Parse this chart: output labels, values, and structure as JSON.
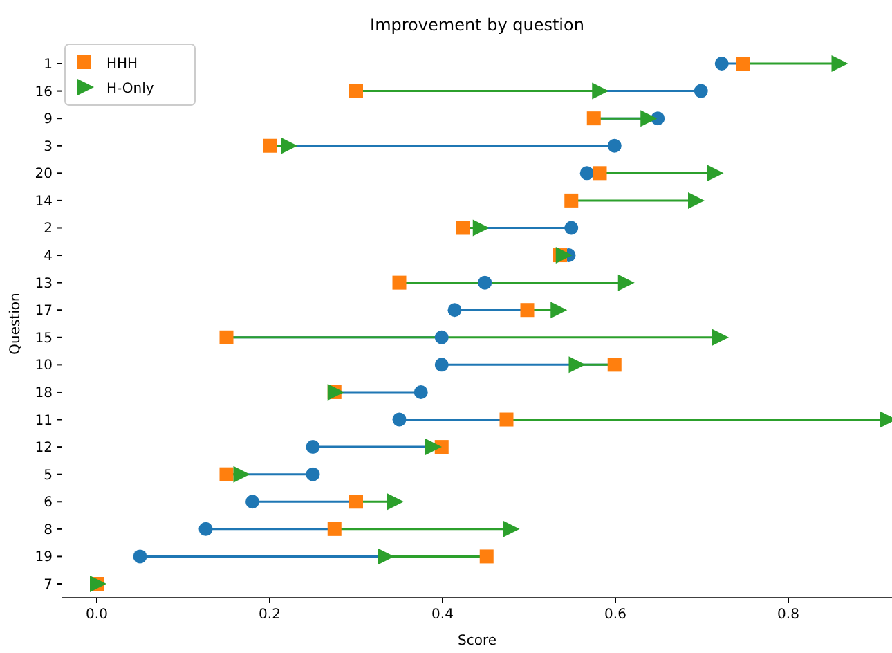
{
  "chart_data": {
    "type": "scatter",
    "title": "Improvement by question",
    "xlabel": "Score",
    "ylabel": "Question",
    "orientation": "horizontal",
    "categories": [
      "1",
      "16",
      "9",
      "3",
      "20",
      "14",
      "2",
      "4",
      "13",
      "17",
      "15",
      "10",
      "18",
      "11",
      "12",
      "5",
      "6",
      "8",
      "19",
      "7"
    ],
    "series": [
      {
        "color": "#1f77b4",
        "marker": "circle",
        "values": [
          0.723,
          0.699,
          0.649,
          0.599,
          0.567,
          null,
          0.549,
          0.546,
          0.449,
          0.414,
          0.399,
          0.399,
          0.375,
          0.35,
          0.25,
          0.25,
          0.18,
          0.126,
          0.05,
          null
        ]
      },
      {
        "name": "HHH",
        "color": "#ff7f0e",
        "marker": "square",
        "values": [
          0.748,
          0.3,
          0.575,
          0.2,
          0.582,
          0.549,
          0.424,
          0.536,
          0.35,
          0.498,
          0.15,
          0.599,
          0.275,
          0.474,
          0.399,
          0.15,
          0.3,
          0.275,
          0.451,
          0
        ]
      },
      {
        "name": "H-Only",
        "color": "#2ca02c",
        "marker": "triangle",
        "values": [
          0.858,
          0.581,
          0.637,
          0.221,
          0.714,
          0.692,
          0.443,
          0.539,
          0.611,
          0.533,
          0.72,
          0.554,
          0.275,
          0.914,
          0.388,
          0.166,
          0.344,
          0.478,
          0.333,
          0
        ]
      }
    ],
    "xlim": [
      -0.04,
      0.92
    ],
    "xticks": [
      {
        "value": 0,
        "label": "0.0"
      },
      {
        "value": 0.2,
        "label": "0.2"
      },
      {
        "value": 0.4,
        "label": "0.4"
      },
      {
        "value": 0.6,
        "label": "0.6"
      },
      {
        "value": 0.8,
        "label": "0.8"
      }
    ],
    "legend": "top left"
  }
}
